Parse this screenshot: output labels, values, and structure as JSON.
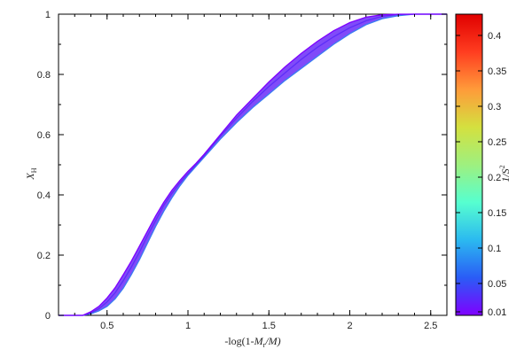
{
  "chart_data": {
    "type": "line",
    "xlabel": "-log(1-M_r/M)",
    "xlabel_parts": {
      "pre": "-log(1-",
      "m": "M",
      "sub_r": "r",
      "post": "/M)"
    },
    "ylabel": "X_H",
    "ylabel_parts": {
      "x": "X",
      "sub": "H"
    },
    "xlim": [
      0.2,
      2.6
    ],
    "ylim": [
      0.0,
      1.0
    ],
    "x_ticks": [
      "0.5",
      "1",
      "1.5",
      "2",
      "2.5"
    ],
    "y_ticks": [
      "0",
      "0.2",
      "0.4",
      "0.6",
      "0.8",
      "1"
    ],
    "colorbar": {
      "label": "1/S^2",
      "label_parts": {
        "base": "1/S",
        "sup": "2"
      },
      "range": [
        0.005,
        0.43
      ],
      "ticks": [
        "0.01",
        "0.05",
        "0.1",
        "0.15",
        "0.2",
        "0.25",
        "0.3",
        "0.35",
        "0.4"
      ],
      "colormap": [
        "#7f00ff",
        "#2a5cf6",
        "#2bb9f0",
        "#56ffd0",
        "#9ef07f",
        "#d4e03f",
        "#ff9b3a",
        "#ff3d20",
        "#e00000"
      ]
    },
    "series": [
      {
        "color": "#3a7df2",
        "x": [
          0.2,
          0.35,
          0.4,
          0.45,
          0.5,
          0.55,
          0.6,
          0.65,
          0.7,
          0.75,
          0.8,
          0.85,
          0.9,
          0.95,
          1.0,
          1.05,
          1.1,
          1.2,
          1.3,
          1.4,
          1.5,
          1.6,
          1.7,
          1.8,
          1.9,
          2.0,
          2.1,
          2.2,
          2.3,
          2.4,
          2.5,
          2.6
        ],
        "y": [
          0.0,
          0.0,
          0.005,
          0.015,
          0.03,
          0.055,
          0.09,
          0.135,
          0.185,
          0.24,
          0.295,
          0.345,
          0.39,
          0.43,
          0.465,
          0.495,
          0.525,
          0.585,
          0.64,
          0.69,
          0.735,
          0.78,
          0.82,
          0.86,
          0.9,
          0.935,
          0.965,
          0.985,
          0.995,
          1.0,
          1.0,
          1.0
        ]
      },
      {
        "color": "#5d2ef8",
        "x": [
          0.2,
          0.35,
          0.4,
          0.45,
          0.5,
          0.55,
          0.6,
          0.65,
          0.7,
          0.75,
          0.8,
          0.85,
          0.9,
          0.95,
          1.0,
          1.05,
          1.1,
          1.2,
          1.3,
          1.4,
          1.5,
          1.6,
          1.7,
          1.8,
          1.9,
          2.0,
          2.1,
          2.2,
          2.3,
          2.4,
          2.5,
          2.6
        ],
        "y": [
          0.0,
          0.0,
          0.008,
          0.022,
          0.045,
          0.075,
          0.115,
          0.16,
          0.21,
          0.265,
          0.315,
          0.365,
          0.405,
          0.44,
          0.47,
          0.5,
          0.53,
          0.595,
          0.655,
          0.71,
          0.76,
          0.805,
          0.85,
          0.89,
          0.925,
          0.955,
          0.978,
          0.993,
          0.999,
          1.0,
          1.0,
          1.0
        ]
      },
      {
        "color": "#7f00ff",
        "x": [
          0.2,
          0.35,
          0.4,
          0.45,
          0.5,
          0.55,
          0.6,
          0.65,
          0.7,
          0.75,
          0.8,
          0.85,
          0.9,
          0.95,
          1.0,
          1.05,
          1.1,
          1.2,
          1.3,
          1.4,
          1.5,
          1.6,
          1.7,
          1.8,
          1.9,
          2.0,
          2.1,
          2.2,
          2.3,
          2.4,
          2.5,
          2.6
        ],
        "y": [
          0.0,
          0.0,
          0.012,
          0.03,
          0.058,
          0.092,
          0.135,
          0.18,
          0.23,
          0.28,
          0.33,
          0.375,
          0.415,
          0.448,
          0.478,
          0.505,
          0.535,
          0.6,
          0.665,
          0.72,
          0.775,
          0.825,
          0.87,
          0.91,
          0.945,
          0.972,
          0.99,
          0.998,
          1.0,
          1.0,
          1.0,
          1.0
        ]
      }
    ]
  }
}
